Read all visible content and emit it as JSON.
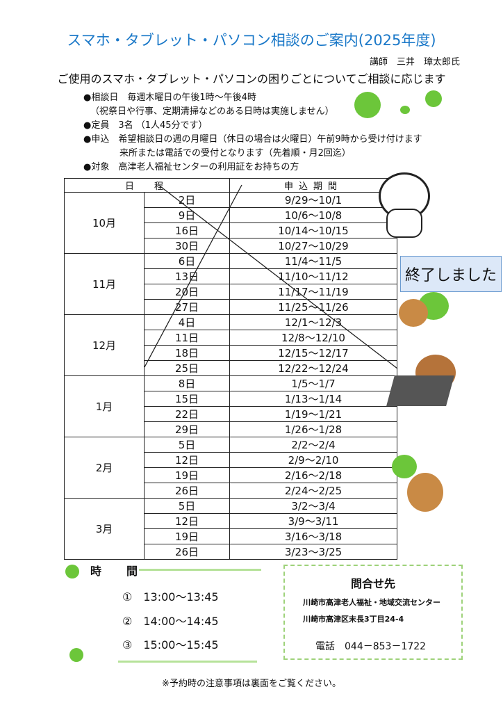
{
  "title": "スマホ・タブレット・パソコン相談のご案内(2025年度)",
  "lecturer": "講師　三井　璋太郎氏",
  "subtitle": "ご使用のスマホ・タブレット・パソコンの困りごとについてご相談に応じます",
  "bullets": [
    "●相談日　毎週木曜日の午後1時～午後4時",
    "（祝祭日や行事、定期清掃などのある日時は実施しません）",
    "●定員　3名 （1人45分です）",
    "●申込　希望相談日の週の月曜日（休日の場合は火曜日）午前9時から受け付けます",
    "来所または電話での受付となります（先着順・月2回迄）",
    "●対象　高津老人福祉センターの利用証をお持ちの方"
  ],
  "table": {
    "headers": [
      "日　程",
      "申込期間"
    ],
    "months": [
      {
        "month": "10月",
        "rows": [
          [
            "2日",
            "9/29～10/1"
          ],
          [
            "9日",
            "10/6～10/8"
          ],
          [
            "16日",
            "10/14～10/15"
          ],
          [
            "30日",
            "10/27～10/29"
          ]
        ]
      },
      {
        "month": "11月",
        "rows": [
          [
            "6日",
            "11/4～11/5"
          ],
          [
            "13日",
            "11/10～11/12"
          ],
          [
            "20日",
            "11/17～11/19"
          ],
          [
            "27日",
            "11/25～11/26"
          ]
        ]
      },
      {
        "month": "12月",
        "rows": [
          [
            "4日",
            "12/1～12/3"
          ],
          [
            "11日",
            "12/8～12/10"
          ],
          [
            "18日",
            "12/15～12/17"
          ],
          [
            "25日",
            "12/22～12/24"
          ]
        ]
      },
      {
        "month": "1月",
        "rows": [
          [
            "8日",
            "1/5～1/7"
          ],
          [
            "15日",
            "1/13～1/14"
          ],
          [
            "22日",
            "1/19～1/21"
          ],
          [
            "29日",
            "1/26～1/28"
          ]
        ]
      },
      {
        "month": "2月",
        "rows": [
          [
            "5日",
            "2/2～2/4"
          ],
          [
            "12日",
            "2/9～2/10"
          ],
          [
            "19日",
            "2/16～2/18"
          ],
          [
            "26日",
            "2/24～2/25"
          ]
        ]
      },
      {
        "month": "3月",
        "rows": [
          [
            "5日",
            "3/2～3/4"
          ],
          [
            "12日",
            "3/9～3/11"
          ],
          [
            "19日",
            "3/16～3/18"
          ],
          [
            "26日",
            "3/23～3/25"
          ]
        ]
      }
    ],
    "ended_label": "終了しました"
  },
  "times": {
    "heading": "時　間",
    "slots": [
      "①　13:00～13:45",
      "②　14:00～14:45",
      "③　15:00～15:45"
    ]
  },
  "contact": {
    "heading": "問合せ先",
    "name": "川崎市高津老人福祉・地域交流センター",
    "address": "川崎市高津区末長3丁目24-4",
    "tel": "電話　044－853－1722"
  },
  "note": "※予約時の注意事項は裏面をご覧ください。",
  "colors": {
    "title": "#1a78c8",
    "clover": "#5dbb2e",
    "ended_bg": "#dce8f8"
  }
}
